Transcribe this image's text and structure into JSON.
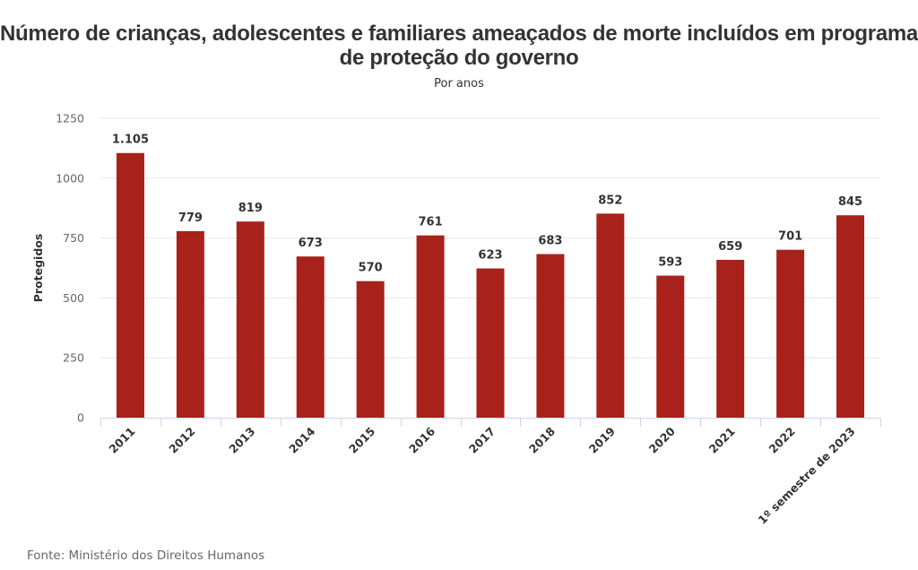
{
  "chart_data": {
    "type": "bar",
    "title": "Número de crianças, adolescentes e familiares ameaçados de morte incluídos em programa de proteção do governo",
    "subtitle": "Por anos",
    "xlabel": "",
    "ylabel": "Protegidos",
    "ylim": [
      0,
      1250
    ],
    "yticks": [
      0,
      250,
      500,
      750,
      1000,
      1250
    ],
    "grid": true,
    "legend": "none",
    "bar_color": "#a8211a",
    "categories": [
      "2011",
      "2012",
      "2013",
      "2014",
      "2015",
      "2016",
      "2017",
      "2018",
      "2019",
      "2020",
      "2021",
      "2022",
      "1º semestre de 2023"
    ],
    "values": [
      1105,
      779,
      819,
      673,
      570,
      761,
      623,
      683,
      852,
      593,
      659,
      701,
      845
    ],
    "data_labels": [
      "1.105",
      "779",
      "819",
      "673",
      "570",
      "761",
      "623",
      "683",
      "852",
      "593",
      "659",
      "701",
      "845"
    ],
    "source": "Fonte: Ministério dos Direitos Humanos"
  }
}
